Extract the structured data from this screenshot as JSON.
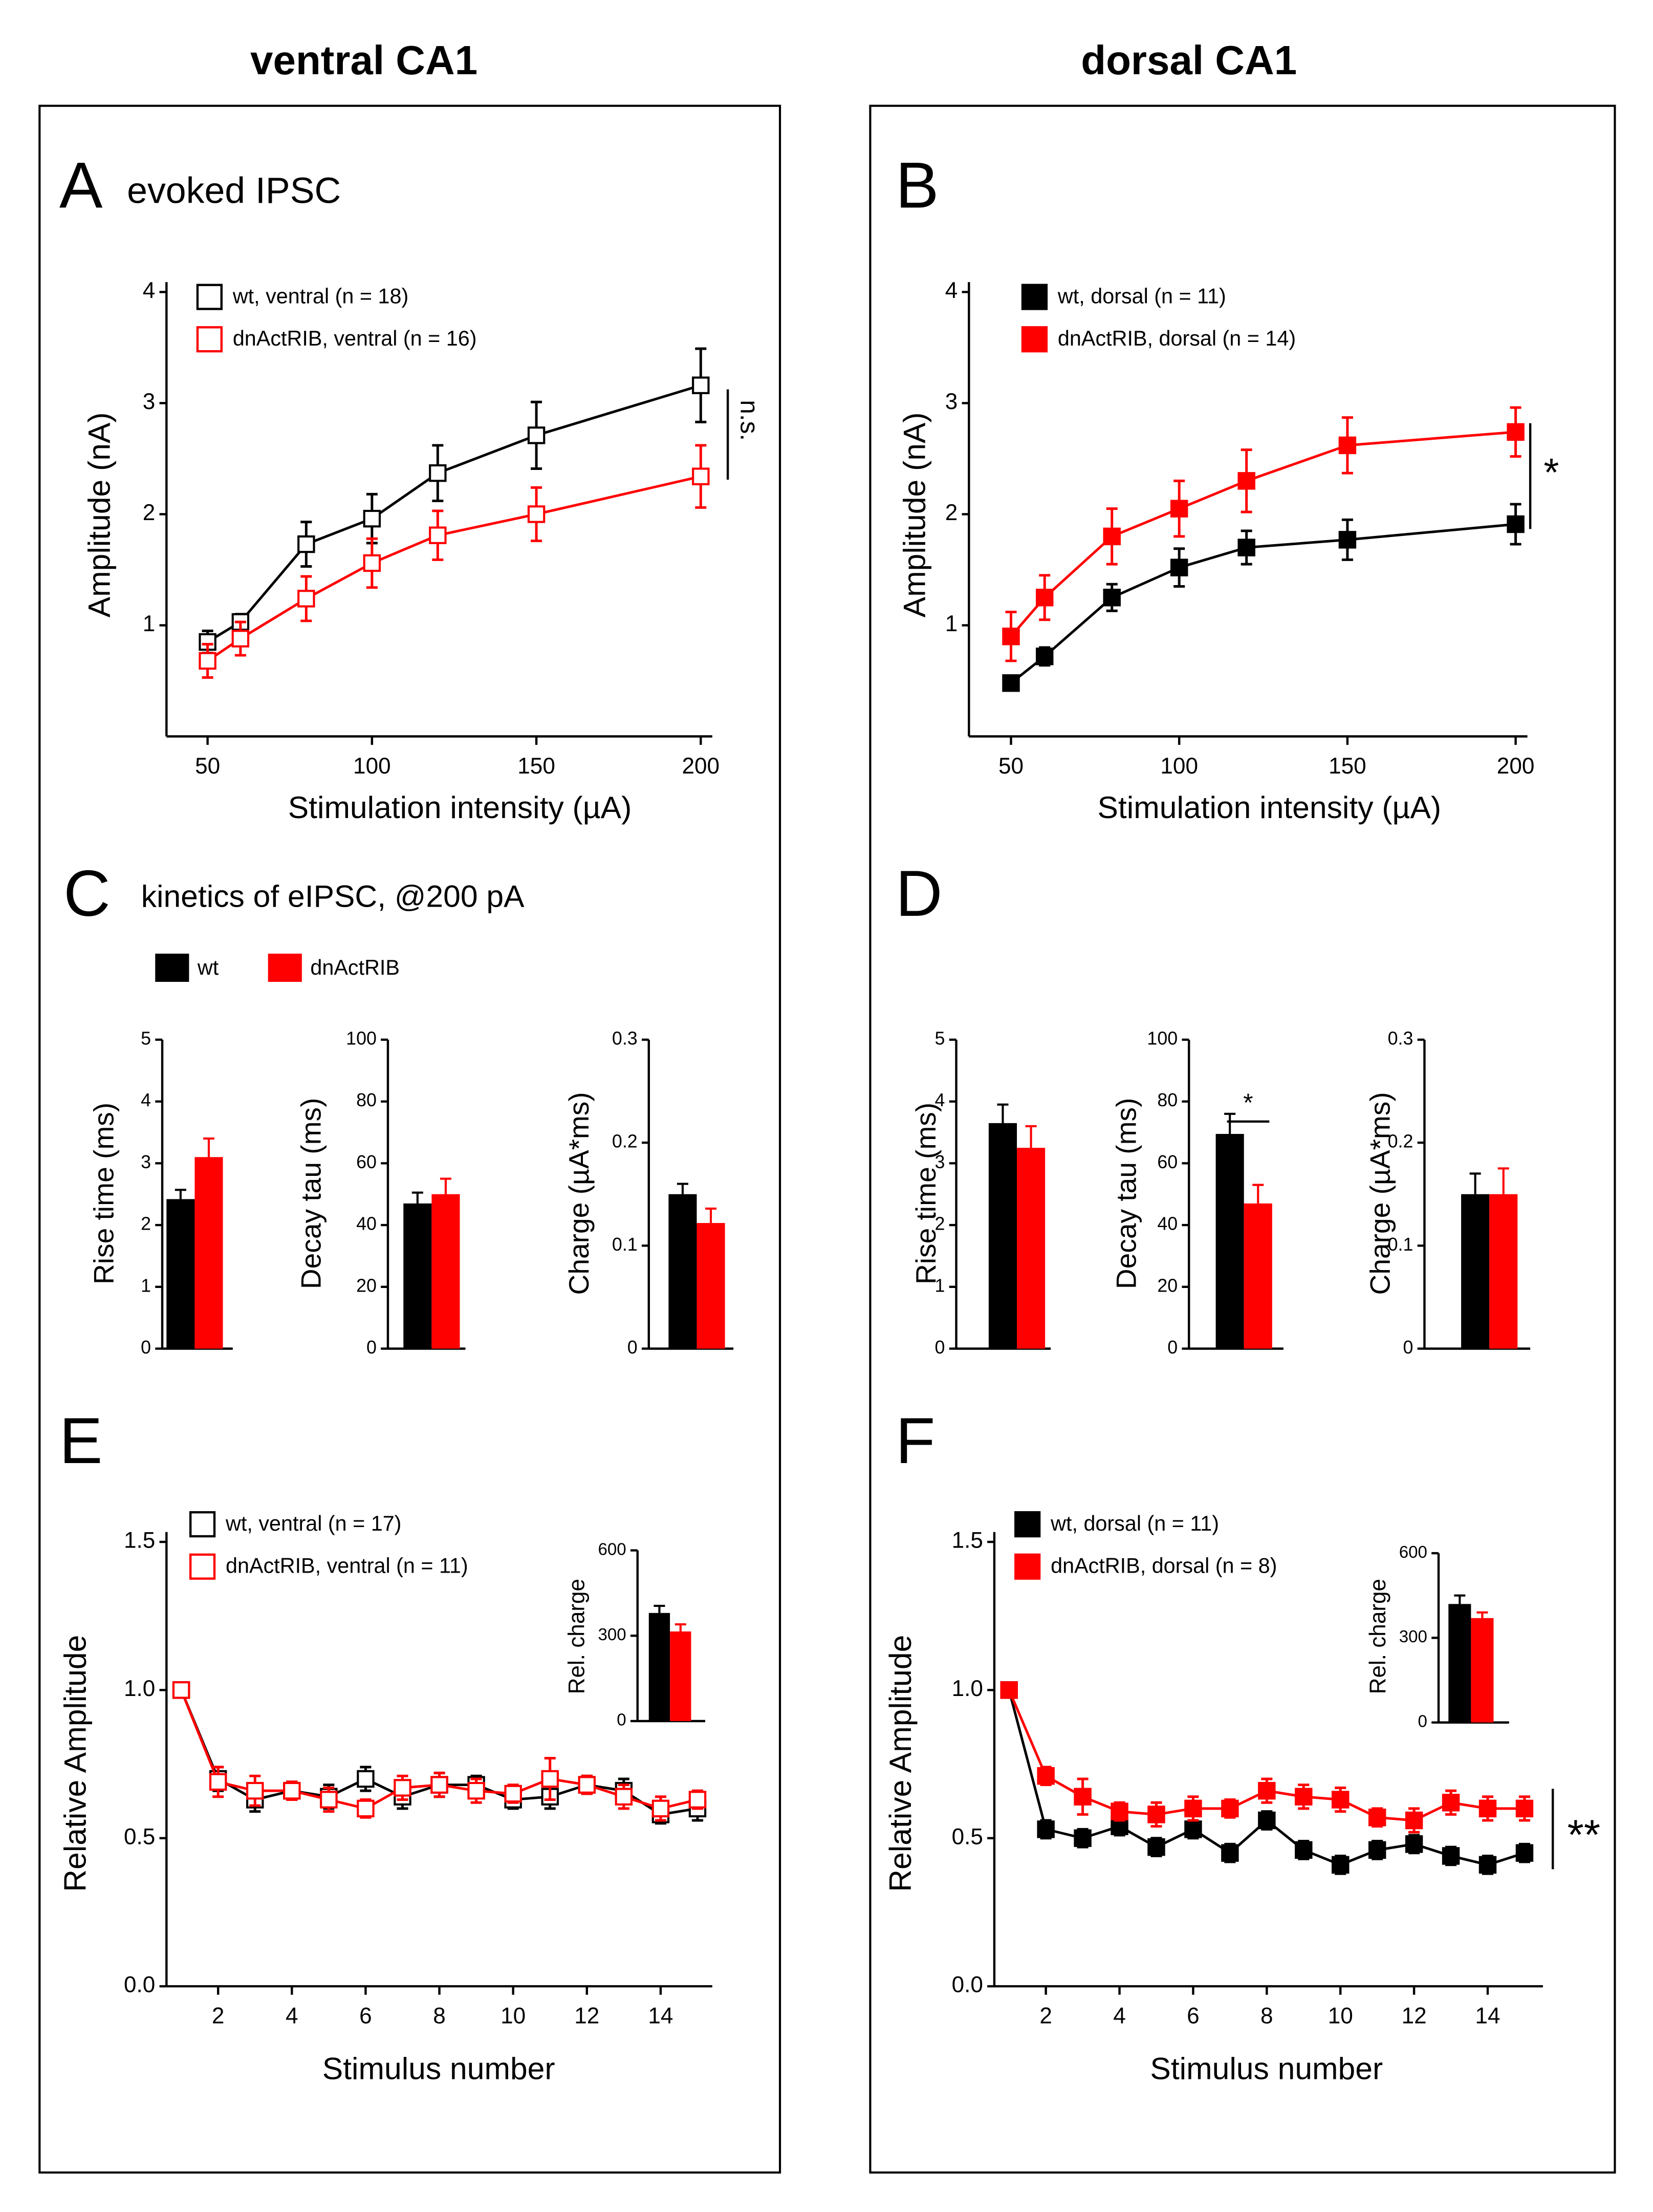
{
  "headers": [
    "ventral CA1",
    "dorsal CA1"
  ],
  "chart_data": [
    {
      "type": "line",
      "panel": "A",
      "title": "evoked IPSC",
      "x_label": "Stimulation intensity (µA)",
      "y_label": "Amplitude (nA)",
      "x": [
        50,
        60,
        80,
        100,
        120,
        150,
        200
      ],
      "xlim": [
        37.5,
        203.5
      ],
      "xticks": [
        50,
        100,
        150,
        200
      ],
      "ylim": [
        0,
        4
      ],
      "yticks": [
        1,
        2,
        3,
        4
      ],
      "annotation": "n.s.",
      "series": [
        {
          "name": "wt, ventral (n = 18)",
          "color": "#000000",
          "marker": "open-square",
          "values": [
            0.85,
            1.03,
            1.73,
            1.96,
            2.37,
            2.71,
            3.16
          ],
          "errors": [
            0.1,
            0.07,
            0.2,
            0.22,
            0.25,
            0.3,
            0.33
          ]
        },
        {
          "name": "dnActRIB, ventral (n = 16)",
          "color": "#ff0000",
          "marker": "open-square",
          "values": [
            0.68,
            0.88,
            1.24,
            1.56,
            1.81,
            2.0,
            2.34
          ],
          "errors": [
            0.15,
            0.15,
            0.2,
            0.22,
            0.22,
            0.24,
            0.28
          ]
        }
      ]
    },
    {
      "type": "line",
      "panel": "B",
      "x_label": "Stimulation intensity (µA)",
      "y_label": "Amplitude (nA)",
      "x": [
        50,
        60,
        80,
        100,
        120,
        150,
        200
      ],
      "xlim": [
        37.5,
        203.5
      ],
      "xticks": [
        50,
        100,
        150,
        200
      ],
      "ylim": [
        0,
        4
      ],
      "yticks": [
        1,
        2,
        3,
        4
      ],
      "annotation": "*",
      "series": [
        {
          "name": "wt, dorsal (n = 11)",
          "color": "#000000",
          "marker": "square",
          "values": [
            0.48,
            0.72,
            1.25,
            1.52,
            1.7,
            1.77,
            1.91
          ],
          "errors": [
            0.05,
            0.08,
            0.12,
            0.17,
            0.15,
            0.18,
            0.18
          ]
        },
        {
          "name": "dnActRIB, dorsal (n = 14)",
          "color": "#ff0000",
          "marker": "square",
          "values": [
            0.9,
            1.25,
            1.8,
            2.05,
            2.3,
            2.62,
            2.74
          ],
          "errors": [
            0.22,
            0.2,
            0.25,
            0.25,
            0.28,
            0.25,
            0.22
          ]
        }
      ]
    },
    {
      "type": "bar",
      "panel": "C",
      "title": "kinetics of eIPSC, @200 pA",
      "y_label": "Rise time (ms)",
      "ylim": [
        0,
        5
      ],
      "yticks": [
        0,
        1,
        2,
        3,
        4,
        5
      ],
      "series": [
        {
          "name": "wt",
          "color": "#000000",
          "values": [
            2.42
          ],
          "errors": [
            0.15
          ]
        },
        {
          "name": "dnActRIB",
          "color": "#ff0000",
          "values": [
            3.1
          ],
          "errors": [
            0.3
          ]
        }
      ]
    },
    {
      "type": "bar",
      "y_label": "Decay tau (ms)",
      "ylim": [
        0,
        100
      ],
      "yticks": [
        0,
        20,
        40,
        60,
        80,
        100
      ],
      "series": [
        {
          "color": "#000000",
          "values": [
            47
          ],
          "errors": [
            3.5
          ]
        },
        {
          "color": "#ff0000",
          "values": [
            50
          ],
          "errors": [
            5
          ]
        }
      ]
    },
    {
      "type": "bar",
      "y_label": "Charge (µA*ms)",
      "ylim": [
        0,
        0.3
      ],
      "yticks": [
        0,
        0.1,
        0.2,
        0.3
      ],
      "series": [
        {
          "color": "#000000",
          "values": [
            0.15
          ],
          "errors": [
            0.01
          ]
        },
        {
          "color": "#ff0000",
          "values": [
            0.122
          ],
          "errors": [
            0.014
          ]
        }
      ]
    },
    {
      "type": "bar",
      "panel": "D",
      "y_label": "Rise time (ms)",
      "ylim": [
        0,
        5
      ],
      "yticks": [
        0,
        1,
        2,
        3,
        4,
        5
      ],
      "series": [
        {
          "color": "#000000",
          "values": [
            3.65
          ],
          "errors": [
            0.3
          ]
        },
        {
          "color": "#ff0000",
          "values": [
            3.25
          ],
          "errors": [
            0.35
          ]
        }
      ]
    },
    {
      "type": "bar",
      "y_label": "Decay tau (ms)",
      "ylim": [
        0,
        100
      ],
      "yticks": [
        0,
        20,
        40,
        60,
        80,
        100
      ],
      "annotation": "*",
      "series": [
        {
          "color": "#000000",
          "values": [
            69.5
          ],
          "errors": [
            6.5
          ]
        },
        {
          "color": "#ff0000",
          "values": [
            47
          ],
          "errors": [
            6
          ]
        }
      ]
    },
    {
      "type": "bar",
      "y_label": "Charge (µA*ms)",
      "ylim": [
        0,
        0.3
      ],
      "yticks": [
        0,
        0.1,
        0.2,
        0.3
      ],
      "series": [
        {
          "color": "#000000",
          "values": [
            0.15
          ],
          "errors": [
            0.02
          ]
        },
        {
          "color": "#ff0000",
          "values": [
            0.15
          ],
          "errors": [
            0.025
          ]
        }
      ]
    },
    {
      "type": "line",
      "panel": "E",
      "x_label": "Stimulus number",
      "y_label": "Relative Amplitude",
      "x": [
        1,
        2,
        3,
        4,
        5,
        6,
        7,
        8,
        9,
        10,
        11,
        12,
        13,
        14,
        15
      ],
      "xlim": [
        0.6,
        15.4
      ],
      "xticks": [
        2,
        4,
        6,
        8,
        10,
        12,
        14
      ],
      "ylim": [
        0,
        1.5
      ],
      "yticks": [
        {
          "value": 0,
          "label": "0.0"
        },
        0.5,
        {
          "value": 1,
          "label": "1.0"
        },
        1.5
      ],
      "series": [
        {
          "name": "wt, ventral (n = 17)",
          "color": "#000000",
          "marker": "open-square",
          "values": [
            1,
            0.7,
            0.63,
            0.66,
            0.64,
            0.7,
            0.64,
            0.68,
            0.68,
            0.63,
            0.64,
            0.68,
            0.66,
            0.58,
            0.6
          ],
          "errors": [
            0,
            0.04,
            0.04,
            0.03,
            0.04,
            0.04,
            0.04,
            0.04,
            0.03,
            0.03,
            0.04,
            0.03,
            0.04,
            0.03,
            0.04
          ]
        },
        {
          "name": "dnActRIB, ventral (n = 11)",
          "color": "#ff0000",
          "marker": "open-square",
          "values": [
            1,
            0.69,
            0.66,
            0.66,
            0.63,
            0.6,
            0.67,
            0.68,
            0.66,
            0.65,
            0.7,
            0.68,
            0.64,
            0.6,
            0.63
          ],
          "errors": [
            0,
            0.05,
            0.05,
            0.03,
            0.04,
            0.03,
            0.04,
            0.04,
            0.04,
            0.03,
            0.07,
            0.03,
            0.04,
            0.04,
            0.03
          ]
        }
      ]
    },
    {
      "type": "bar",
      "y_label": "Rel. charge",
      "ylim": [
        0,
        600
      ],
      "yticks": [
        0,
        300,
        600
      ],
      "series": [
        {
          "color": "#000000",
          "values": [
            380
          ],
          "errors": [
            25
          ]
        },
        {
          "color": "#ff0000",
          "values": [
            315
          ],
          "errors": [
            25
          ]
        }
      ]
    },
    {
      "type": "line",
      "panel": "F",
      "x_label": "Stimulus number",
      "y_label": "Relative Amplitude",
      "x": [
        1,
        2,
        3,
        4,
        5,
        6,
        7,
        8,
        9,
        10,
        11,
        12,
        13,
        14,
        15
      ],
      "xlim": [
        0.6,
        15.5
      ],
      "xticks": [
        2,
        4,
        6,
        8,
        10,
        12,
        14
      ],
      "ylim": [
        0,
        1.5
      ],
      "yticks": [
        {
          "value": 0,
          "label": "0.0"
        },
        0.5,
        {
          "value": 1,
          "label": "1.0"
        },
        1.5
      ],
      "annotation": "**",
      "series": [
        {
          "name": "wt, dorsal (n = 11)",
          "color": "#000000",
          "marker": "square",
          "values": [
            1,
            0.53,
            0.5,
            0.54,
            0.47,
            0.53,
            0.45,
            0.56,
            0.46,
            0.41,
            0.46,
            0.48,
            0.44,
            0.41,
            0.45
          ],
          "errors": [
            0,
            0.03,
            0.03,
            0.03,
            0.03,
            0.03,
            0.03,
            0.03,
            0.03,
            0.03,
            0.03,
            0.03,
            0.03,
            0.03,
            0.03
          ]
        },
        {
          "name": "dnActRIB, dorsal (n = 8)",
          "color": "#ff0000",
          "marker": "square",
          "values": [
            1,
            0.71,
            0.64,
            0.59,
            0.58,
            0.6,
            0.6,
            0.66,
            0.64,
            0.63,
            0.57,
            0.56,
            0.62,
            0.6,
            0.6
          ],
          "errors": [
            0,
            0.03,
            0.06,
            0.03,
            0.04,
            0.04,
            0.03,
            0.04,
            0.04,
            0.04,
            0.03,
            0.04,
            0.04,
            0.04,
            0.04
          ]
        }
      ]
    },
    {
      "type": "bar",
      "y_label": "Rel. charge",
      "ylim": [
        0,
        600
      ],
      "yticks": [
        0,
        300,
        600
      ],
      "series": [
        {
          "color": "#000000",
          "values": [
            420
          ],
          "errors": [
            30
          ]
        },
        {
          "color": "#ff0000",
          "values": [
            370
          ],
          "errors": [
            20
          ]
        }
      ]
    }
  ]
}
